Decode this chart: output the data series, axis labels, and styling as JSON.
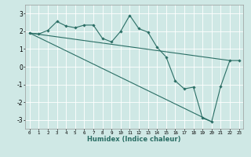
{
  "xlabel": "Humidex (Indice chaleur)",
  "xlim": [
    -0.5,
    23.5
  ],
  "ylim": [
    -3.5,
    3.5
  ],
  "yticks": [
    -3,
    -2,
    -1,
    0,
    1,
    2,
    3
  ],
  "xtick_vals": [
    0,
    1,
    2,
    3,
    4,
    5,
    6,
    7,
    8,
    9,
    10,
    11,
    12,
    13,
    14,
    15,
    16,
    17,
    18,
    19,
    20,
    21,
    22,
    23
  ],
  "xtick_labels": [
    "0",
    "1",
    "2",
    "3",
    "4",
    "5",
    "6",
    "7",
    "8",
    "9",
    "10",
    "11",
    "12",
    "13",
    "14",
    "15",
    "16",
    "17",
    "18",
    "19",
    "20",
    "21",
    "22",
    "23"
  ],
  "bg_color": "#cfe8e5",
  "grid_color": "#ffffff",
  "line_color": "#2a6e65",
  "line1_x": [
    0,
    1,
    2,
    3,
    4,
    5,
    6,
    7,
    8,
    9,
    10,
    11,
    12,
    13,
    14,
    15,
    16,
    17,
    18,
    19,
    20,
    21,
    22,
    23
  ],
  "line1_y": [
    1.9,
    1.85,
    2.05,
    2.55,
    2.3,
    2.2,
    2.35,
    2.35,
    1.6,
    1.4,
    2.0,
    2.9,
    2.15,
    1.95,
    1.1,
    0.55,
    -0.8,
    -1.25,
    -1.15,
    -2.9,
    -3.1,
    -1.1,
    0.35,
    0.35
  ],
  "line2_x": [
    0,
    22
  ],
  "line2_y": [
    1.9,
    0.35
  ],
  "line3_x": [
    0,
    20
  ],
  "line3_y": [
    1.9,
    -3.1
  ]
}
